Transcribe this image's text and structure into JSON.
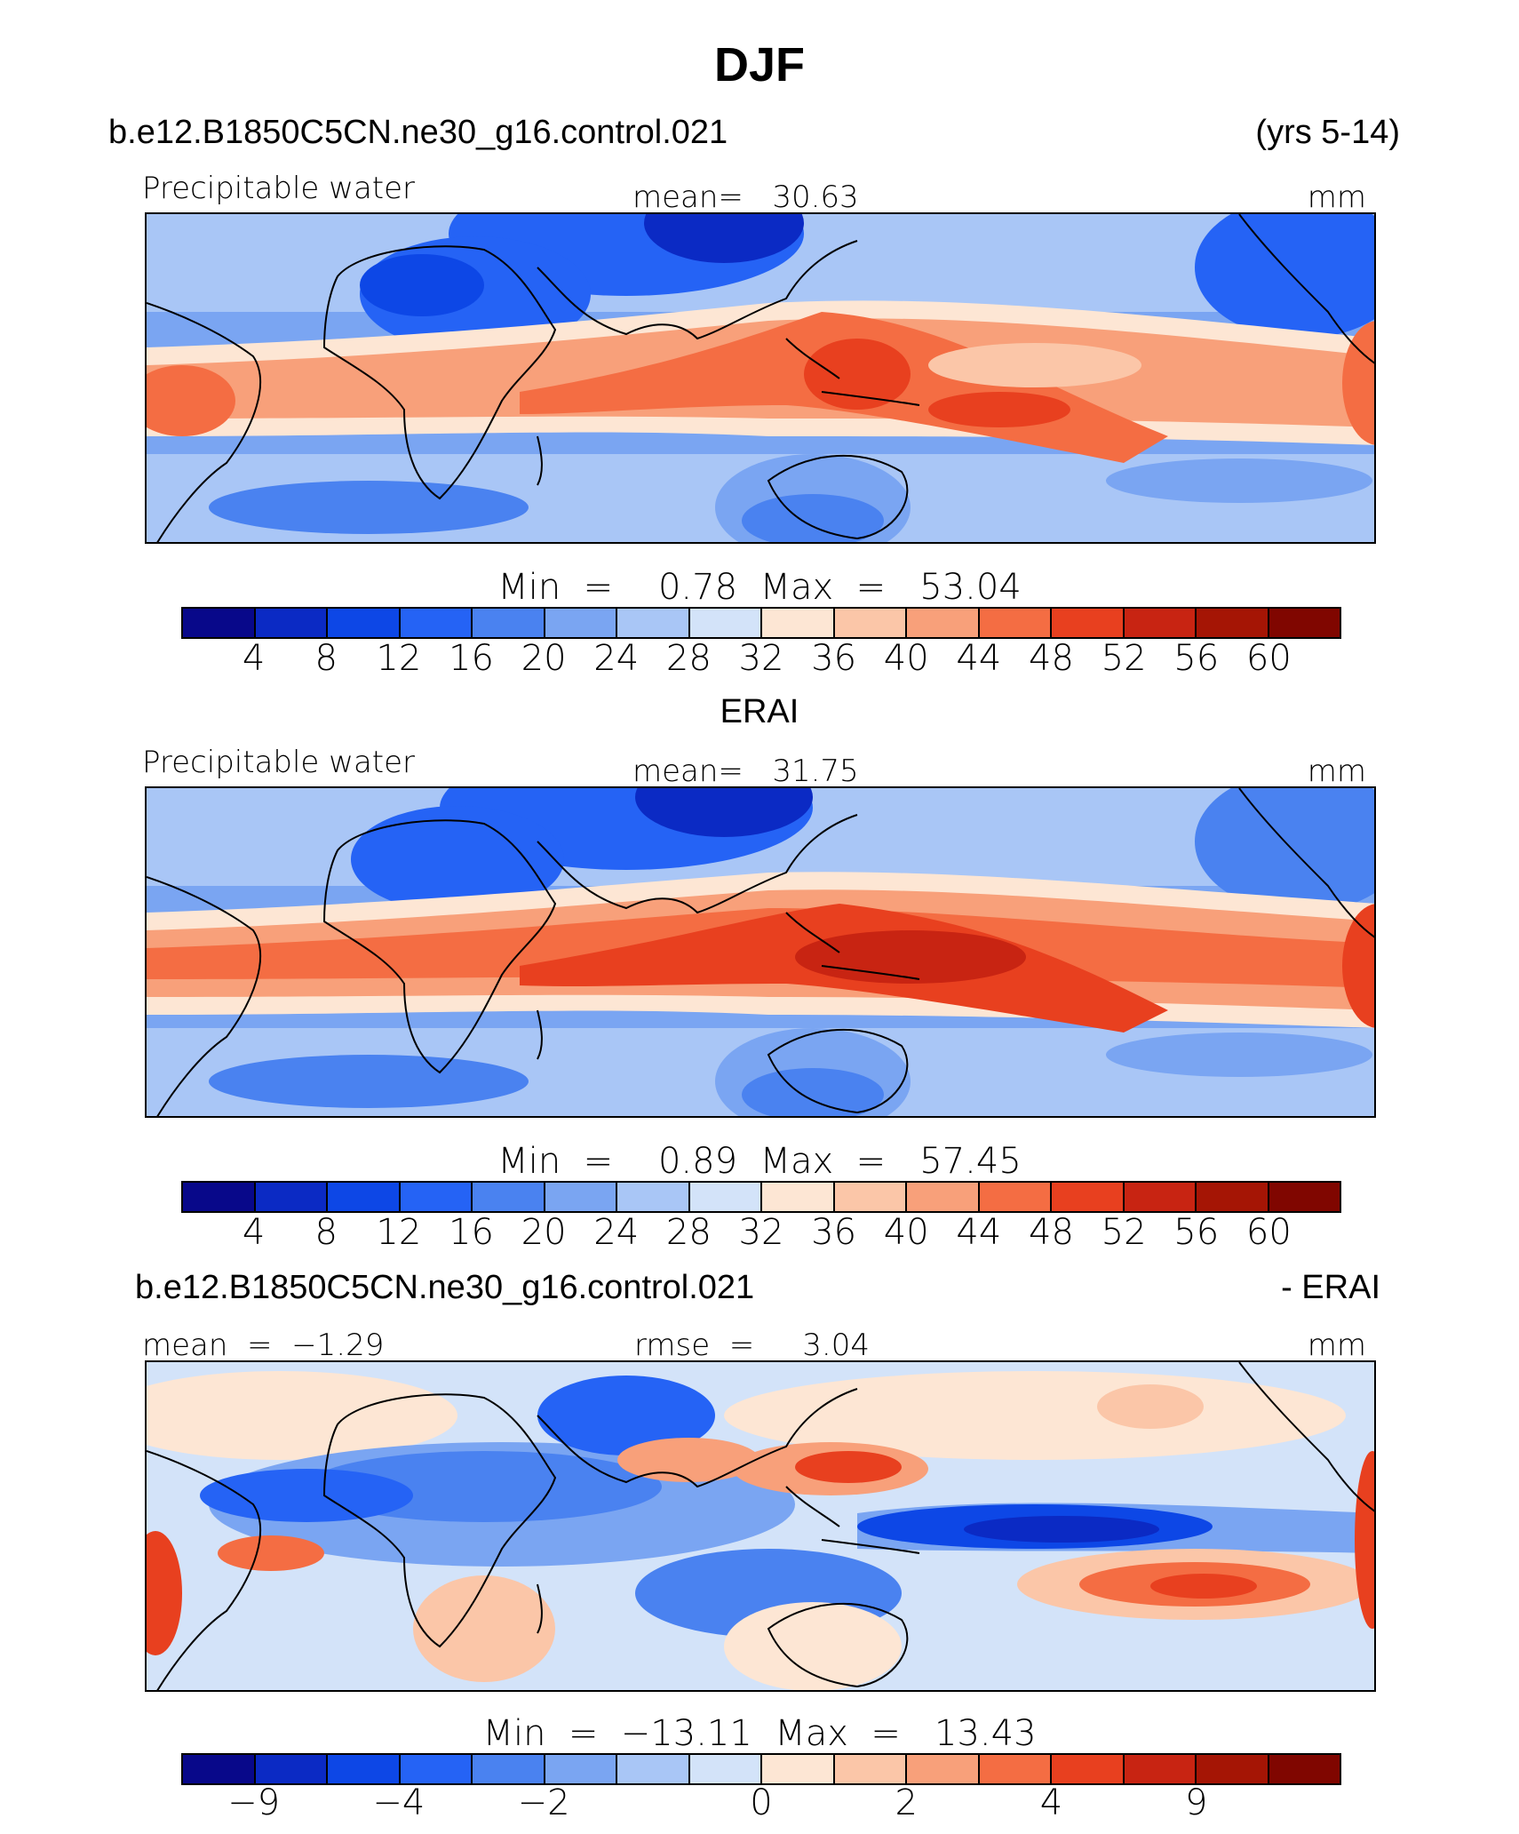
{
  "title": "DJF",
  "case_name": "b.e12.B1850C5CN.ne30_g16.control.021",
  "years": "(yrs 5-14)",
  "obs_name": "ERAI",
  "diff_title": {
    "left": "b.e12.B1850C5CN.ne30_g16.control.021",
    "right": "- ERAI"
  },
  "panels": [
    {
      "id": "model",
      "variable": "Precipitable water",
      "mean_label": "mean=   30.63",
      "units": "mm",
      "minmax": "Min  =    0.78  Max  =   53.04",
      "min": 0.78,
      "max": 53.04,
      "mean": 30.63
    },
    {
      "id": "obs",
      "variable": "Precipitable water",
      "mean_label": "mean=   31.75",
      "units": "mm",
      "minmax": "Min  =    0.89  Max  =   57.45",
      "min": 0.89,
      "max": 57.45,
      "mean": 31.75
    },
    {
      "id": "diff",
      "mean_label": "mean  =  −1.29",
      "rmse_label": "rmse  =     3.04",
      "units": "mm",
      "minmax": "Min  =  −13.11  Max  =   13.43",
      "min": -13.11,
      "max": 13.43,
      "mean": -1.29,
      "rmse": 3.04
    }
  ],
  "colorbar": {
    "colors": [
      "#08088a",
      "#0b2ac4",
      "#0d47e6",
      "#2563f5",
      "#4a82f0",
      "#7aa5f2",
      "#a9c6f6",
      "#d3e3f9",
      "#fde6d4",
      "#fbc6a8",
      "#f8a07a",
      "#f46d43",
      "#e8401f",
      "#c82412",
      "#a51505",
      "#800600"
    ],
    "abs_ticks": [
      "4",
      "8",
      "12",
      "16",
      "20",
      "24",
      "28",
      "32",
      "36",
      "40",
      "44",
      "48",
      "52",
      "56",
      "60"
    ],
    "diff_ticks": [
      {
        "label": "−9",
        "boundary": 1
      },
      {
        "label": "−4",
        "boundary": 3
      },
      {
        "label": "−2",
        "boundary": 5
      },
      {
        "label": "0",
        "boundary": 8
      },
      {
        "label": "2",
        "boundary": 10
      },
      {
        "label": "4",
        "boundary": 12
      },
      {
        "label": "9",
        "boundary": 14
      }
    ]
  }
}
